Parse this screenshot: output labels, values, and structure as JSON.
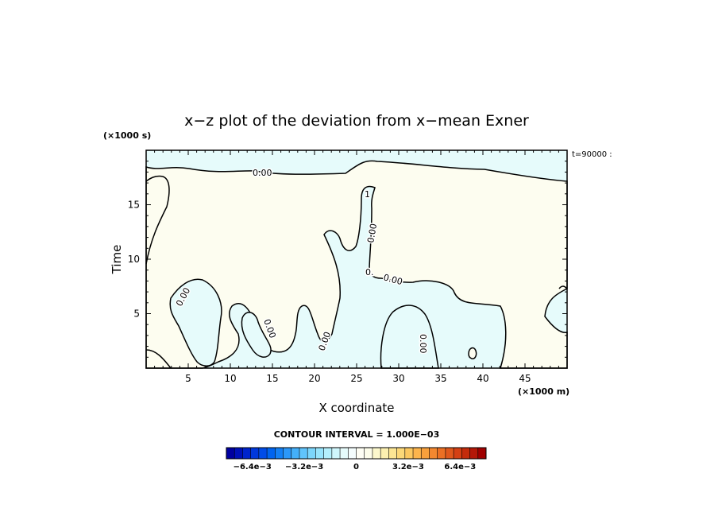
{
  "chart_data": {
    "type": "contour",
    "title": "x−z plot of the deviation from x−mean Exner",
    "xlabel": "X coordinate",
    "ylabel": "Time",
    "x_unit": "(×1000 m)",
    "y_unit": "(×1000 s)",
    "time_label": "t=90000 :",
    "xlim": [
      0,
      50
    ],
    "ylim": [
      0,
      20
    ],
    "x_ticks": [
      "5",
      "10",
      "15",
      "20",
      "25",
      "30",
      "35",
      "40",
      "45"
    ],
    "y_ticks": [
      "5",
      "10",
      "15"
    ],
    "contour_interval": "CONTOUR INTERVAL = 1.000E−03",
    "contour_labels": [
      "0.00",
      "0.00",
      "0.00",
      "0.00",
      "0.00",
      "0.00",
      "0.",
      "0.00",
      "1"
    ],
    "field_colors": {
      "negative_small": "#e6fbfb",
      "positive_small": "#fdfdf0"
    },
    "colorbar": {
      "tick_labels": [
        "−6.4e−3",
        "−3.2e−3",
        "0",
        "3.2e−3",
        "6.4e−3"
      ],
      "colors": [
        "#0000a0",
        "#0010b8",
        "#0024cc",
        "#0038dc",
        "#004ce8",
        "#0064f0",
        "#1480f4",
        "#2c98f8",
        "#44b0fa",
        "#60c4fc",
        "#7cd6fc",
        "#98e4fc",
        "#b4effc",
        "#cff6fc",
        "#e6fbfb",
        "#f4fdfd",
        "#fefef4",
        "#fdfdea",
        "#fcf8cc",
        "#fcf0b0",
        "#fce694",
        "#fcd878",
        "#fcc860",
        "#fcb44c",
        "#f8a03c",
        "#f48830",
        "#ec7024",
        "#e0581c",
        "#d44014",
        "#c42c0c",
        "#b41808",
        "#a00000"
      ]
    }
  }
}
